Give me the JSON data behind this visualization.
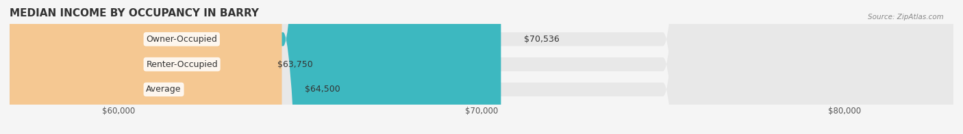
{
  "title": "MEDIAN INCOME BY OCCUPANCY IN BARRY",
  "source": "Source: ZipAtlas.com",
  "categories": [
    "Owner-Occupied",
    "Renter-Occupied",
    "Average"
  ],
  "values": [
    70536,
    63750,
    64500
  ],
  "bar_colors": [
    "#3db8c0",
    "#c9aed6",
    "#f5c892"
  ],
  "bar_labels": [
    "$70,536",
    "$63,750",
    "$64,500"
  ],
  "xmin": 57000,
  "xmax": 83000,
  "xticks": [
    60000,
    70000,
    80000
  ],
  "xticklabels": [
    "$60,000",
    "$70,000",
    "$80,000"
  ],
  "background_color": "#f5f5f5",
  "bar_bg_color": "#e8e8e8",
  "title_fontsize": 11,
  "label_fontsize": 9,
  "tick_fontsize": 8.5
}
